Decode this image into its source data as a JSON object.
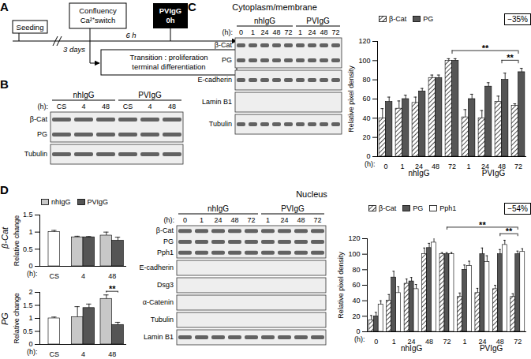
{
  "chart_data": [
    {
      "type": "bar",
      "ylabel": "Relative pixel density",
      "xlabel": "(h):",
      "categories": [
        "0",
        "1",
        "24",
        "48",
        "72",
        "1",
        "24",
        "48",
        "72"
      ],
      "ylim": [
        0,
        120
      ],
      "yticks": [
        0,
        20,
        40,
        60,
        80,
        100,
        120
      ],
      "legend": "top-left",
      "annotation": "−35%",
      "groups": [
        {
          "label": "nhIgG",
          "from": 0,
          "to": 4
        },
        {
          "label": "PVIgG",
          "from": 5,
          "to": 8
        }
      ],
      "comparisons": [
        {
          "from": 7,
          "to": 8,
          "label": "**"
        },
        {
          "from": 4,
          "to": 8,
          "label": "**"
        }
      ],
      "series": [
        {
          "name": "β-Cat",
          "color": "#ffffff",
          "marker": "hatch",
          "values": [
            40,
            50,
            56,
            82,
            100,
            41,
            40,
            57,
            53
          ],
          "errors": [
            10,
            8,
            6,
            3,
            2,
            8,
            8,
            6,
            2
          ]
        },
        {
          "name": "PG",
          "color": "#555555",
          "values": [
            57,
            60,
            68,
            82,
            100,
            60,
            73,
            80,
            88
          ],
          "errors": [
            5,
            4,
            3,
            3,
            2,
            5,
            4,
            7,
            4
          ]
        }
      ]
    },
    {
      "type": "bar",
      "title": "β-Cat",
      "ylabel": "Relative change",
      "xlabel": "(h):",
      "categories": [
        "CS",
        "4",
        "48"
      ],
      "ylim": [
        0,
        1.5
      ],
      "yticks": [
        0,
        0.5,
        1,
        1.5
      ],
      "legend": "top-left",
      "series": [
        {
          "name": "nhIgG",
          "color": "#c8c8c8",
          "colors": [
            "#ffffff",
            "#c8c8c8",
            "#c8c8c8"
          ],
          "values": [
            1,
            0.85,
            0.9
          ],
          "errors": [
            0.05,
            0.03,
            0.1
          ]
        },
        {
          "name": "PVIgG",
          "color": "#555555",
          "values": [
            null,
            0.85,
            0.75
          ],
          "errors": [
            null,
            0.02,
            0.1
          ]
        }
      ]
    },
    {
      "type": "bar",
      "title": "PG",
      "ylabel": "Relative change",
      "xlabel": "(h):",
      "categories": [
        "CS",
        "4",
        "48"
      ],
      "ylim": [
        0,
        2
      ],
      "yticks": [
        0,
        0.5,
        1,
        1.5,
        2
      ],
      "comparisons": [
        {
          "from": 2,
          "to": 2,
          "label": "**"
        }
      ],
      "series": [
        {
          "name": "nhIgG",
          "color": "#c8c8c8",
          "colors": [
            "#ffffff",
            "#c8c8c8",
            "#c8c8c8"
          ],
          "values": [
            1,
            1.05,
            1.75
          ],
          "errors": [
            0.05,
            0.4,
            0.15
          ]
        },
        {
          "name": "PVIgG",
          "color": "#555555",
          "values": [
            null,
            1.4,
            0.75
          ],
          "errors": [
            null,
            0.15,
            0.1
          ]
        }
      ]
    },
    {
      "type": "bar",
      "ylabel": "Relative pixel density",
      "xlabel": "(h):",
      "categories": [
        "0",
        "1",
        "24",
        "48",
        "72",
        "1",
        "24",
        "48",
        "72"
      ],
      "ylim": [
        0,
        120
      ],
      "yticks": [
        0,
        20,
        40,
        60,
        80,
        100,
        120
      ],
      "legend": "top-left",
      "annotation": "−54%",
      "groups": [
        {
          "label": "nhIgG",
          "from": 0,
          "to": 4
        },
        {
          "label": "PVIgG",
          "from": 5,
          "to": 8
        }
      ],
      "comparisons": [
        {
          "from": 7,
          "to": 8,
          "label": "**"
        },
        {
          "from": 4,
          "to": 8,
          "label": "**"
        }
      ],
      "series": [
        {
          "name": "β-Cat",
          "color": "#ffffff",
          "marker": "hatch",
          "values": [
            15,
            40,
            62,
            100,
            100,
            45,
            50,
            55,
            45
          ],
          "errors": [
            6,
            8,
            6,
            8,
            2,
            5,
            6,
            5,
            4
          ]
        },
        {
          "name": "PG",
          "color": "#555555",
          "values": [
            20,
            70,
            65,
            108,
            100,
            80,
            100,
            100,
            100
          ],
          "errors": [
            5,
            8,
            5,
            6,
            2,
            6,
            8,
            6,
            4
          ]
        },
        {
          "name": "Pph1",
          "color": "#ffffff",
          "values": [
            35,
            50,
            55,
            115,
            100,
            85,
            90,
            112,
            103
          ],
          "errors": [
            5,
            8,
            6,
            6,
            2,
            6,
            8,
            6,
            4
          ]
        }
      ]
    }
  ],
  "figure": {
    "A": {
      "label": "A",
      "seeding": "Seeding",
      "switch": [
        "Confluency",
        "Ca²⁺switch"
      ],
      "treatment": [
        "PVIgG",
        "0h"
      ],
      "interval1": "3 days",
      "interval2": "6 h",
      "transition": [
        "Transition : proliferation",
        "terminal differentiation"
      ]
    },
    "B": {
      "label": "B",
      "blot": {
        "time_label": "(h):",
        "groups": [
          {
            "name": "nhIgG",
            "lanes": [
              "CS",
              "4",
              "48"
            ]
          },
          {
            "name": "PVIgG",
            "lanes": [
              "CS",
              "4",
              "48"
            ]
          }
        ],
        "rows": [
          {
            "labels": [
              "β-Cat",
              "PG"
            ],
            "bands": true
          },
          {
            "labels": [
              "Tubulin"
            ],
            "bands": true
          }
        ]
      }
    },
    "C": {
      "label": "C",
      "title": "Cytoplasm/membrane",
      "blot": {
        "time_label": "(h):",
        "groups": [
          {
            "name": "nhIgG",
            "lanes": [
              "0",
              "1",
              "24",
              "48",
              "72"
            ]
          },
          {
            "name": "PVIgG",
            "lanes": [
              "1",
              "24",
              "48",
              "72"
            ]
          }
        ],
        "rows": [
          {
            "labels": [
              "β-Cat",
              "PG"
            ],
            "bands": true
          },
          {
            "labels": [
              "E-cadherin"
            ],
            "bands": true
          },
          {
            "labels": [
              "Lamin B1"
            ],
            "bands": false
          },
          {
            "labels": [
              "Tubulin"
            ],
            "bands": true
          }
        ]
      }
    },
    "D": {
      "label": "D",
      "title": "Nucleus",
      "blot": {
        "time_label": "(h):",
        "groups": [
          {
            "name": "nhIgG",
            "lanes": [
              "0",
              "1",
              "24",
              "48",
              "72"
            ]
          },
          {
            "name": "PVIgG",
            "lanes": [
              "1",
              "24",
              "48",
              "72"
            ]
          }
        ],
        "rows": [
          {
            "labels": [
              "β-Cat",
              "PG",
              "Pph1"
            ],
            "bands": true
          },
          {
            "labels": [
              "E-cadherin"
            ],
            "bands": false
          },
          {
            "labels": [
              "Dsg3"
            ],
            "bands": false
          },
          {
            "labels": [
              "α-Catenin"
            ],
            "bands": false
          },
          {
            "labels": [
              "Tubulin"
            ],
            "bands": false
          },
          {
            "labels": [
              "Lamin B1"
            ],
            "bands": true
          }
        ]
      }
    }
  }
}
